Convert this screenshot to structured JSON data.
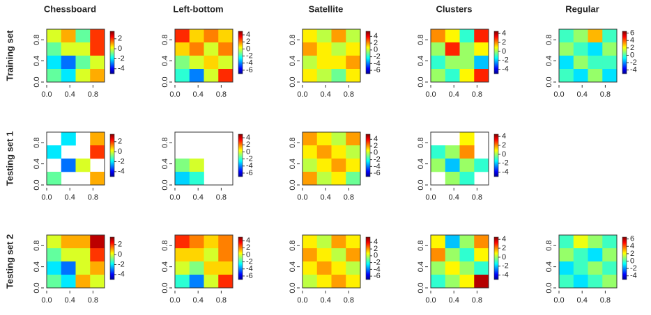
{
  "column_titles": [
    "Chessboard",
    "Left-bottom",
    "Satellite",
    "Clusters",
    "Regular"
  ],
  "row_labels": [
    "Training set",
    "Testing set 1",
    "Testing set 2"
  ],
  "chart_data": [
    {
      "type": "heatmap",
      "xlim": [
        0,
        1
      ],
      "ylim": [
        0,
        1
      ],
      "xticks": [
        {
          "value": 0,
          "label": "0.0"
        },
        0.4,
        0.8
      ],
      "yticks": [
        {
          "value": 0,
          "label": "0.0"
        },
        0.4,
        0.8
      ],
      "zlim": [
        -5,
        3.5
      ],
      "zticks": [
        -4,
        -2,
        0,
        2
      ],
      "values": [
        [
          0,
          1,
          -1,
          2
        ],
        [
          -1,
          0,
          0,
          2
        ],
        [
          -2,
          -3,
          -1,
          0
        ],
        [
          -1,
          -2,
          0,
          1
        ]
      ]
    },
    {
      "type": "heatmap",
      "xlim": [
        0,
        1
      ],
      "ylim": [
        0,
        1
      ],
      "xticks": [
        {
          "value": 0,
          "label": "0.0"
        },
        0.4,
        0.8
      ],
      "yticks": [
        {
          "value": 0,
          "label": "0.0"
        },
        0.4,
        0.8
      ],
      "zlim": [
        -7,
        5
      ],
      "zticks": [
        -6,
        -4,
        -2,
        0,
        2,
        4
      ],
      "values": [
        [
          3,
          1,
          2,
          1
        ],
        [
          1,
          2,
          0,
          2
        ],
        [
          -1,
          0,
          1,
          0
        ],
        [
          -2,
          -4,
          0,
          3
        ]
      ]
    },
    {
      "type": "heatmap",
      "xlim": [
        0,
        1
      ],
      "ylim": [
        0,
        1
      ],
      "xticks": [
        {
          "value": 0,
          "label": "0.0"
        },
        0.4,
        0.8
      ],
      "yticks": [
        {
          "value": 0,
          "label": "0.0"
        },
        0.4,
        0.8
      ],
      "zlim": [
        -7,
        5.5
      ],
      "zticks": [
        -6,
        -4,
        -2,
        0,
        2,
        4
      ],
      "values": [
        [
          1,
          0,
          2,
          0
        ],
        [
          2,
          1,
          0,
          1
        ],
        [
          0,
          1,
          1,
          2
        ],
        [
          1,
          0,
          -1,
          1
        ]
      ]
    },
    {
      "type": "heatmap",
      "xlim": [
        0,
        1
      ],
      "ylim": [
        0,
        1
      ],
      "xticks": [
        {
          "value": 0,
          "label": "0.0"
        },
        0.4,
        0.8
      ],
      "yticks": [
        {
          "value": 0,
          "label": "0.0"
        },
        0.4,
        0.8
      ],
      "zlim": [
        -5,
        4.5
      ],
      "zticks": [
        -4,
        -2,
        0,
        2,
        4
      ],
      "values": [
        [
          2,
          1,
          -1,
          3
        ],
        [
          0,
          3,
          0,
          1
        ],
        [
          -1,
          0,
          0,
          -2
        ],
        [
          0,
          -1,
          1,
          3
        ]
      ]
    },
    {
      "type": "heatmap",
      "xlim": [
        0,
        1
      ],
      "ylim": [
        0,
        1
      ],
      "xticks": [
        {
          "value": 0,
          "label": "0.0"
        },
        0.4,
        0.8
      ],
      "yticks": [
        {
          "value": 0,
          "label": "0.0"
        },
        0.4,
        0.8
      ],
      "zlim": [
        -5,
        6.5
      ],
      "zticks": [
        -4,
        -2,
        0,
        2,
        4,
        6
      ],
      "values": [
        [
          0,
          1,
          3,
          0
        ],
        [
          1,
          0,
          -1,
          1
        ],
        [
          -1,
          1,
          0,
          0
        ],
        [
          0,
          -1,
          1,
          -1
        ]
      ]
    },
    {
      "type": "heatmap",
      "xlim": [
        0,
        1
      ],
      "ylim": [
        0,
        1
      ],
      "xticks": [
        {
          "value": 0,
          "label": "0.0"
        },
        0.4,
        0.8
      ],
      "yticks": [
        {
          "value": 0,
          "label": "0.0"
        },
        0.4,
        0.8
      ],
      "zlim": [
        -5,
        3.5
      ],
      "zticks": [
        -4,
        -2,
        0,
        2
      ],
      "values": [
        [
          null,
          -2,
          null,
          1
        ],
        [
          -2,
          null,
          null,
          2
        ],
        [
          null,
          -3,
          0,
          null
        ],
        [
          -1,
          null,
          null,
          1
        ]
      ]
    },
    {
      "type": "heatmap",
      "xlim": [
        0,
        1
      ],
      "ylim": [
        0,
        1
      ],
      "xticks": [
        {
          "value": 0,
          "label": "0.0"
        },
        0.4,
        0.8
      ],
      "yticks": [
        {
          "value": 0,
          "label": "0.0"
        },
        0.4,
        0.8
      ],
      "zlim": [
        -7,
        5
      ],
      "zticks": [
        -6,
        -4,
        -2,
        0,
        2,
        4
      ],
      "values": [
        [
          null,
          null,
          null,
          null
        ],
        [
          null,
          null,
          null,
          null
        ],
        [
          -1,
          0,
          null,
          null
        ],
        [
          -3,
          -2,
          null,
          null
        ]
      ]
    },
    {
      "type": "heatmap",
      "xlim": [
        0,
        1
      ],
      "ylim": [
        0,
        1
      ],
      "xticks": [
        {
          "value": 0,
          "label": "0.0"
        },
        0.4,
        0.8
      ],
      "yticks": [
        {
          "value": 0,
          "label": "0.0"
        },
        0.4,
        0.8
      ],
      "zlim": [
        -7,
        5.5
      ],
      "zticks": [
        -6,
        -4,
        -2,
        0,
        2,
        4
      ],
      "values": [
        [
          2,
          1,
          0,
          2
        ],
        [
          1,
          2,
          1,
          0
        ],
        [
          0,
          1,
          2,
          1
        ],
        [
          2,
          0,
          1,
          -1
        ]
      ]
    },
    {
      "type": "heatmap",
      "xlim": [
        0,
        1
      ],
      "ylim": [
        0,
        1
      ],
      "xticks": [
        {
          "value": 0,
          "label": "0.0"
        },
        0.4,
        0.8
      ],
      "yticks": [
        {
          "value": 0,
          "label": "0.0"
        },
        0.4,
        0.8
      ],
      "zlim": [
        -5,
        4.5
      ],
      "zticks": [
        -4,
        -2,
        0,
        2,
        4
      ],
      "values": [
        [
          null,
          null,
          1,
          null
        ],
        [
          -1,
          0,
          2,
          null
        ],
        [
          0,
          -2,
          0,
          -1
        ],
        [
          null,
          0,
          -1,
          null
        ]
      ]
    },
    null,
    {
      "type": "heatmap",
      "xlim": [
        0,
        1
      ],
      "ylim": [
        0,
        1
      ],
      "xticks": [
        {
          "value": 0,
          "label": "0.0"
        },
        0.4,
        0.8
      ],
      "yticks": [
        {
          "value": 0,
          "label": "0.0"
        },
        0.4,
        0.8
      ],
      "zlim": [
        -5,
        3.5
      ],
      "zticks": [
        -4,
        -2,
        0,
        2
      ],
      "values": [
        [
          0,
          1,
          1,
          3
        ],
        [
          -1,
          0,
          0,
          2
        ],
        [
          -2,
          -3,
          0,
          1
        ],
        [
          -1,
          -2,
          1,
          0
        ]
      ]
    },
    {
      "type": "heatmap",
      "xlim": [
        0,
        1
      ],
      "ylim": [
        0,
        1
      ],
      "xticks": [
        {
          "value": 0,
          "label": "0.0"
        },
        0.4,
        0.8
      ],
      "yticks": [
        {
          "value": 0,
          "label": "0.0"
        },
        0.4,
        0.8
      ],
      "zlim": [
        -7,
        5
      ],
      "zticks": [
        -6,
        -4,
        -2,
        0,
        2,
        4
      ],
      "values": [
        [
          3,
          2,
          1,
          2
        ],
        [
          1,
          1,
          0,
          2
        ],
        [
          0,
          -1,
          1,
          1
        ],
        [
          -2,
          -4,
          0,
          3
        ]
      ]
    },
    {
      "type": "heatmap",
      "xlim": [
        0,
        1
      ],
      "ylim": [
        0,
        1
      ],
      "xticks": [
        {
          "value": 0,
          "label": "0.0"
        },
        0.4,
        0.8
      ],
      "yticks": [
        {
          "value": 0,
          "label": "0.0"
        },
        0.4,
        0.8
      ],
      "zlim": [
        -7,
        5.5
      ],
      "zticks": [
        -6,
        -4,
        -2,
        0,
        2,
        4
      ],
      "values": [
        [
          1,
          0,
          2,
          1
        ],
        [
          2,
          1,
          0,
          2
        ],
        [
          1,
          2,
          1,
          0
        ],
        [
          0,
          1,
          2,
          1
        ]
      ]
    },
    {
      "type": "heatmap",
      "xlim": [
        0,
        1
      ],
      "ylim": [
        0,
        1
      ],
      "xticks": [
        {
          "value": 0,
          "label": "0.0"
        },
        0.4,
        0.8
      ],
      "yticks": [
        {
          "value": 0,
          "label": "0.0"
        },
        0.4,
        0.8
      ],
      "zlim": [
        -5,
        4.5
      ],
      "zticks": [
        -4,
        -2,
        0,
        2,
        4
      ],
      "values": [
        [
          1,
          -2,
          0,
          2
        ],
        [
          2,
          0,
          -1,
          1
        ],
        [
          0,
          1,
          0,
          -1
        ],
        [
          -1,
          0,
          1,
          4
        ]
      ]
    },
    {
      "type": "heatmap",
      "xlim": [
        0,
        1
      ],
      "ylim": [
        0,
        1
      ],
      "xticks": [
        {
          "value": 0,
          "label": "0.0"
        },
        0.4,
        0.8
      ],
      "yticks": [
        {
          "value": 0,
          "label": "0.0"
        },
        0.4,
        0.8
      ],
      "zlim": [
        -5,
        6.5
      ],
      "zticks": [
        -4,
        -2,
        0,
        2,
        4,
        6
      ],
      "values": [
        [
          0,
          2,
          1,
          0
        ],
        [
          1,
          0,
          -1,
          1
        ],
        [
          -1,
          0,
          1,
          0
        ],
        [
          0,
          -1,
          0,
          1
        ]
      ]
    }
  ]
}
